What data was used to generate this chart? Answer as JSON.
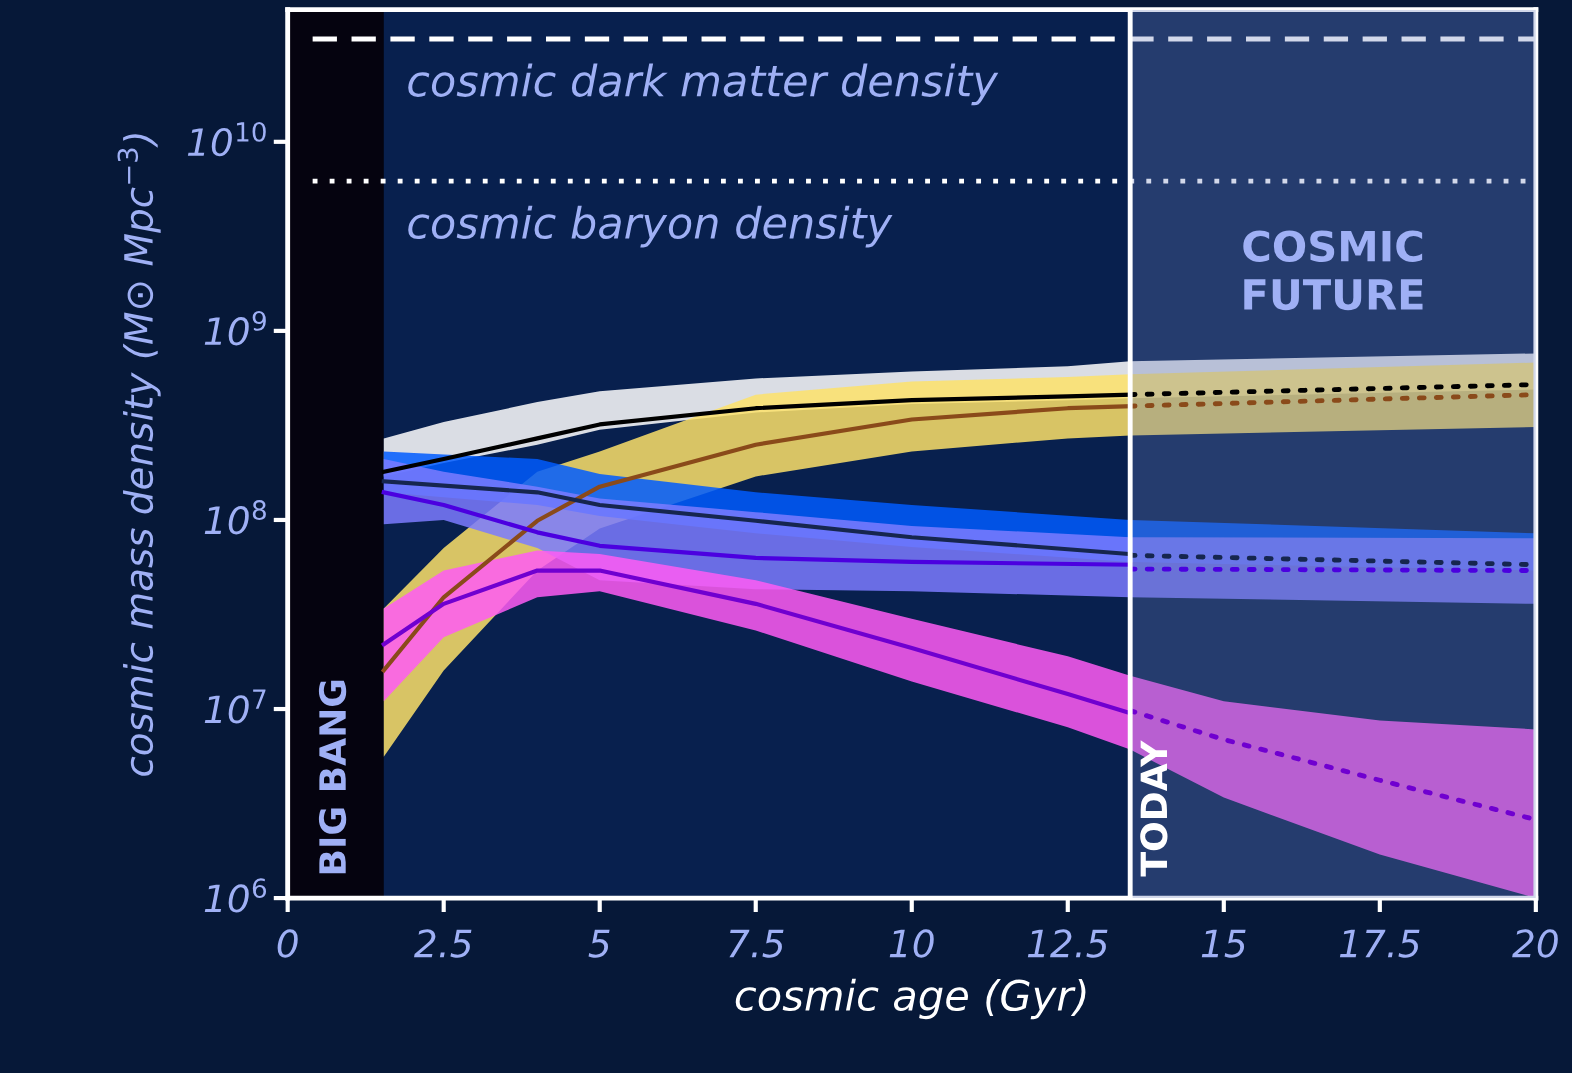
{
  "chart_data": {
    "type": "line",
    "log": "y",
    "xlabel": "cosmic age (Gyr)",
    "ylabel": "cosmic mass density (M⊙ Mpc$^{−3}$)",
    "xlim": [
      0,
      20
    ],
    "ylim": [
      1000000,
      50000000000
    ],
    "xticks": [
      0,
      2.5,
      5,
      7.5,
      10,
      12.5,
      15,
      17.5,
      20
    ],
    "yticks": [
      {
        "value": 1000000,
        "label": "10$^{6}$"
      },
      {
        "value": 10000000,
        "label": "10$^{7}$"
      },
      {
        "value": 100000000,
        "label": "10$^{8}$"
      },
      {
        "value": 1000000000,
        "label": "10$^{9}$"
      },
      {
        "value": 10000000000,
        "label": "10$^{10}$"
      }
    ],
    "grid": false,
    "legend": false,
    "series": [
      {
        "color": "#ffffff",
        "x": [
          1.54,
          2.5,
          4,
          5,
          7.5,
          10,
          12.5,
          13.5,
          20
        ],
        "lower": [
          170000000.0,
          200000000.0,
          250000000.0,
          300000000.0,
          370000000.0,
          410000000.0,
          430000000.0,
          440000000.0,
          490000000.0
        ],
        "values": [
          null,
          null,
          null,
          null,
          null,
          null,
          null,
          null,
          null
        ],
        "upper": [
          270000000.0,
          330000000.0,
          420000000.0,
          480000000.0,
          560000000.0,
          610000000.0,
          650000000.0,
          690000000.0,
          760000000.0
        ]
      },
      {
        "color": "#fde26a",
        "x": [
          1.54,
          2.5,
          4,
          5,
          7.5,
          10,
          12.5,
          13.5,
          20
        ],
        "lower": [
          5600000.0,
          16000000.0,
          54000000.0,
          90000000.0,
          170000000.0,
          230000000.0,
          270000000.0,
          280000000.0,
          310000000.0
        ],
        "values": [
          null,
          null,
          null,
          null,
          null,
          null,
          null,
          null,
          null
        ],
        "upper": [
          34000000.0,
          71000000.0,
          180000000.0,
          230000000.0,
          460000000.0,
          540000000.0,
          570000000.0,
          590000000.0,
          680000000.0
        ]
      },
      {
        "color": "#005cff",
        "x": [
          1.54,
          4,
          5,
          7.5,
          10,
          13.5,
          20
        ],
        "lower": [
          140000000.0,
          120000000.0,
          105000000.0,
          85000000.0,
          72000000.0,
          60000000.0,
          54000000.0
        ],
        "values": [
          null,
          null,
          null,
          null,
          null,
          null,
          null
        ],
        "upper": [
          230000000.0,
          210000000.0,
          175000000.0,
          140000000.0,
          120000000.0,
          100000000.0,
          85000000.0
        ]
      },
      {
        "color": "#7b7bff",
        "x": [
          1.54,
          2.5,
          4,
          5,
          7.5,
          10,
          13.5,
          20
        ],
        "lower": [
          95000000.0,
          100000000.0,
          71000000.0,
          48000000.0,
          43000000.0,
          42000000.0,
          39000000.0,
          36000000.0
        ],
        "values": [
          null,
          null,
          null,
          null,
          null,
          null,
          null,
          null
        ],
        "upper": [
          210000000.0,
          180000000.0,
          150000000.0,
          130000000.0,
          110000000.0,
          93000000.0,
          81000000.0,
          80000000.0
        ]
      },
      {
        "color": "#ff5cf5",
        "x": [
          1.54,
          2.5,
          4,
          5,
          7.5,
          10,
          12.5,
          13.5,
          15,
          17.5,
          20
        ],
        "lower": [
          11000000.0,
          24000000.0,
          39000000.0,
          42000000.0,
          26000000.0,
          14000000.0,
          8000000.0,
          6100000.0,
          3400000.0,
          1700000.0,
          1000000.0
        ],
        "values": [
          null,
          null,
          null,
          null,
          null,
          null,
          null,
          null,
          null,
          null,
          null
        ],
        "upper": [
          34000000.0,
          54000000.0,
          69000000.0,
          66000000.0,
          48000000.0,
          30000000.0,
          19000000.0,
          15000000.0,
          11000000.0,
          8700000.0,
          7800000.0
        ]
      },
      {
        "color": "#000000",
        "line_style": "solid",
        "x": [
          1.54,
          2.5,
          4,
          5,
          7.5,
          10,
          12.5,
          13.5
        ],
        "values": [
          180000000.0,
          210000000.0,
          270000000.0,
          320000000.0,
          390000000.0,
          430000000.0,
          450000000.0,
          460000000.0
        ]
      },
      {
        "color": "#000000",
        "line_style": "dotted",
        "x": [
          13.5,
          20
        ],
        "values": [
          460000000.0,
          520000000.0
        ]
      },
      {
        "color": "#8a4a1a",
        "line_style": "solid",
        "x": [
          1.54,
          2.5,
          4,
          5,
          7.5,
          10,
          12.5,
          13.5
        ],
        "values": [
          16000000.0,
          39000000.0,
          99000000.0,
          150000000.0,
          250000000.0,
          340000000.0,
          390000000.0,
          400000000.0
        ]
      },
      {
        "color": "#8a4a1a",
        "line_style": "dotted",
        "x": [
          13.5,
          20
        ],
        "values": [
          400000000.0,
          460000000.0
        ]
      },
      {
        "color": "#16264f",
        "line_style": "solid",
        "x": [
          1.54,
          4,
          5,
          7.5,
          10,
          13.5
        ],
        "values": [
          160000000.0,
          140000000.0,
          120000000.0,
          99000000.0,
          81000000.0,
          66000000.0
        ]
      },
      {
        "color": "#16264f",
        "line_style": "dotted",
        "x": [
          13.5,
          20
        ],
        "values": [
          65000000.0,
          58000000.0
        ]
      },
      {
        "color": "#4b00e0",
        "line_style": "solid",
        "x": [
          1.54,
          2.5,
          4,
          5,
          7.5,
          10,
          13.5
        ],
        "values": [
          140000000.0,
          120000000.0,
          86000000.0,
          73000000.0,
          63000000.0,
          60000000.0,
          58000000.0
        ]
      },
      {
        "color": "#4b00e0",
        "line_style": "dotted",
        "x": [
          13.5,
          20
        ],
        "values": [
          55000000.0,
          54000000.0
        ]
      },
      {
        "color": "#7000d0",
        "line_style": "solid",
        "x": [
          1.54,
          2.5,
          4,
          5,
          7.5,
          10,
          12.5,
          13.5
        ],
        "values": [
          22000000.0,
          36000000.0,
          54000000.0,
          54000000.0,
          36000000.0,
          21000000.0,
          12000000.0,
          9500000.0
        ]
      },
      {
        "color": "#7000d0",
        "line_style": "dotted",
        "x": [
          13.5,
          15,
          17.5,
          20
        ],
        "values": [
          9800000.0,
          6900000.0,
          4200000.0,
          2600000.0
        ]
      }
    ],
    "ref_lines": [
      {
        "axis": "y",
        "value": 35000000000.0,
        "label": "cosmic dark matter density",
        "color": "#ffffff",
        "line_style": "dashed"
      },
      {
        "axis": "y",
        "value": 6200000000.0,
        "label": "cosmic baryon density",
        "color": "#ffffff",
        "line_style": "dotted"
      },
      {
        "axis": "x",
        "value": 13.5,
        "label": "TODAY",
        "color": "#ffffff",
        "line_style": "solid"
      }
    ],
    "bands": [
      {
        "axis": "x",
        "from": 0,
        "to": 1.54,
        "label": "BIG BANG",
        "color": "#05030f"
      },
      {
        "axis": "x",
        "from": 13.5,
        "to": 20,
        "label": "COSMIC\nFUTURE",
        "color": "#6a7fb8"
      }
    ]
  }
}
